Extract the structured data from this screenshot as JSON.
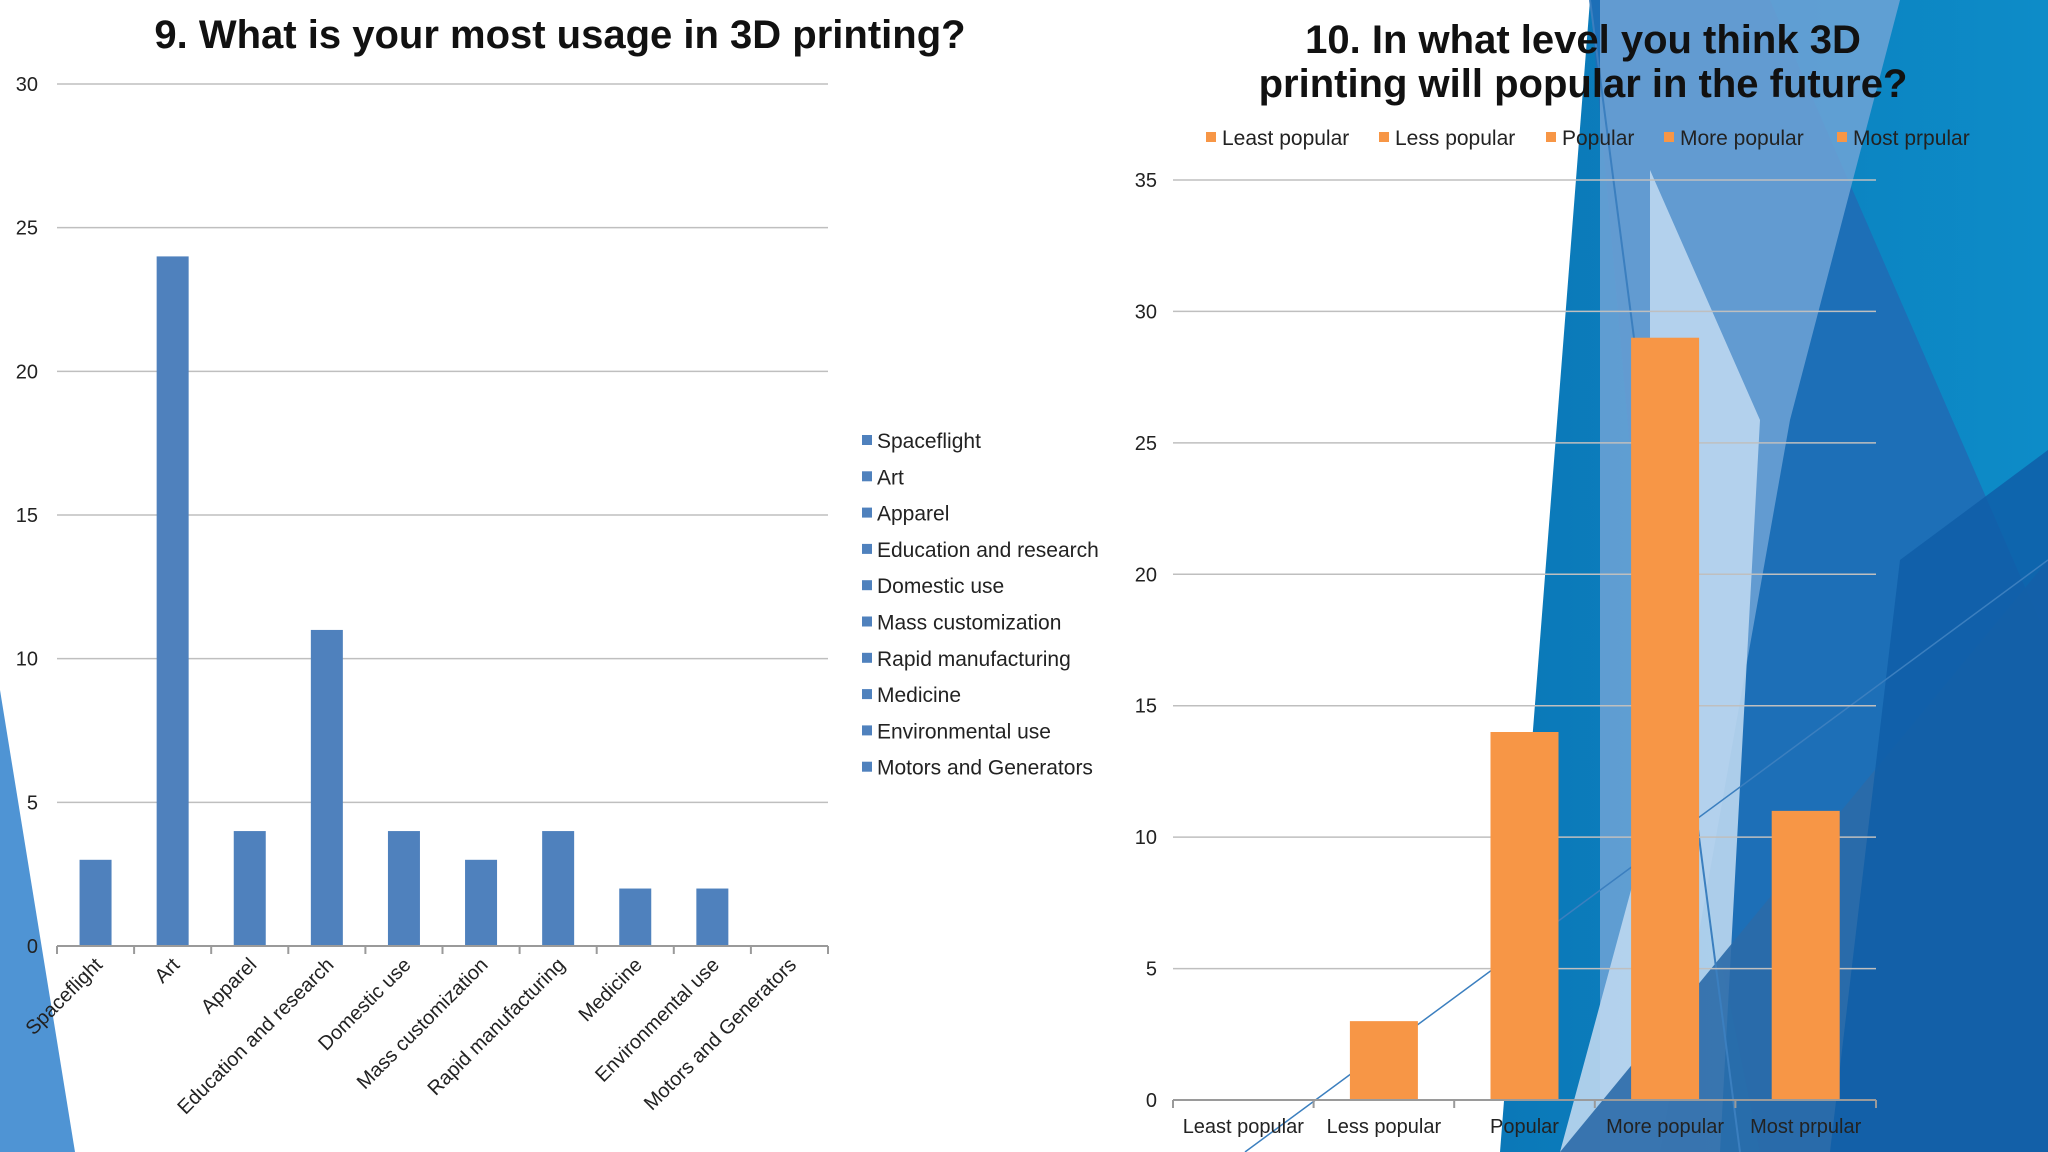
{
  "colors": {
    "bar_left": "#4f81bd",
    "bar_right": "#f79646",
    "gridline": "#bfbfbf",
    "axis": "#9a9a9a",
    "text": "#222222"
  },
  "chart_data": [
    {
      "type": "bar",
      "title": "9. What is your most usage in 3D printing?",
      "categories": [
        "Spaceflight",
        "Art",
        "Apparel",
        "Education and research",
        "Domestic use",
        "Mass customization",
        "Rapid manufacturing",
        "Medicine",
        "Environmental use",
        "Motors and Generators"
      ],
      "values": [
        3,
        24,
        4,
        11,
        4,
        3,
        4,
        2,
        2,
        0
      ],
      "ylim": [
        0,
        30
      ],
      "yticks": [
        0,
        5,
        10,
        15,
        20,
        25,
        30
      ],
      "grid": true,
      "legend_position": "right",
      "xlabel": "",
      "ylabel": ""
    },
    {
      "type": "bar",
      "title": "10. In what level you think 3D printing will popular in the future?",
      "categories": [
        "Least popular",
        "Less popular",
        "Popular",
        "More popular",
        "Most prpular"
      ],
      "values": [
        0,
        3,
        14,
        29,
        11
      ],
      "ylim": [
        0,
        35
      ],
      "yticks": [
        0,
        5,
        10,
        15,
        20,
        25,
        30,
        35
      ],
      "grid": true,
      "legend_position": "top",
      "xlabel": "",
      "ylabel": ""
    }
  ]
}
